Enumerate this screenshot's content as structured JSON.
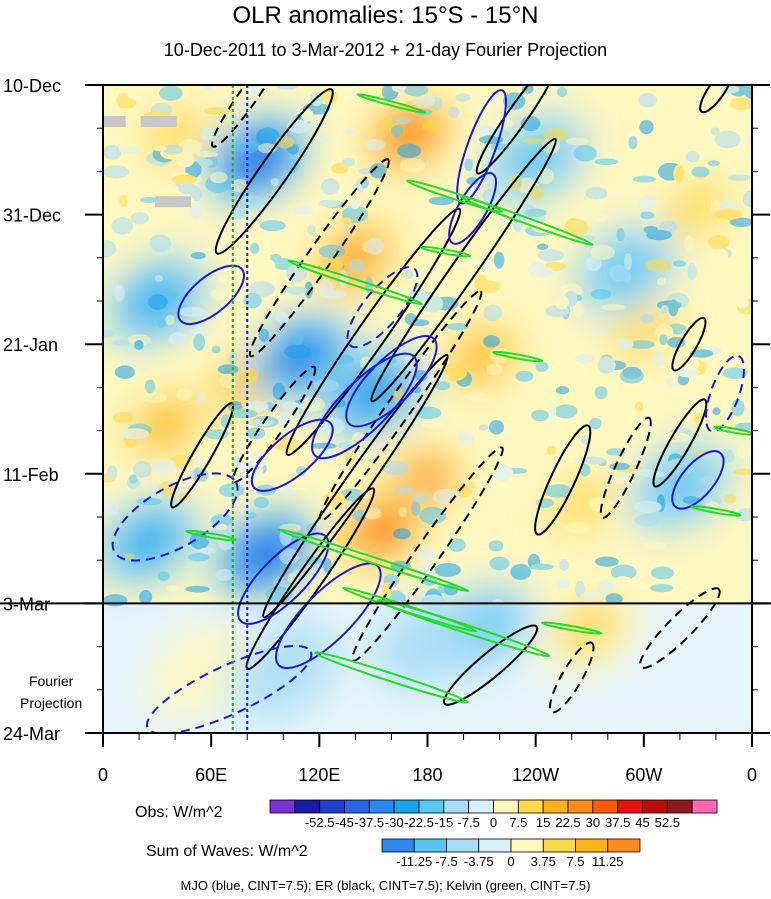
{
  "title": "OLR anomalies: 15°S - 15°N",
  "subtitle": "10-Dec-2011 to 3-Mar-2012 + 21-day Fourier Projection",
  "projection_label": [
    "Fourier",
    "Projection"
  ],
  "footer": "MJO (blue, CINT=7.5); ER (black, CINT=7.5); Kelvin (green, CINT=7.5)",
  "colorbars": {
    "obs": {
      "label": "Obs: W/m^2",
      "ticks": [
        "-52.5",
        "-45",
        "-37.5",
        "-30",
        "-22.5",
        "-15",
        "-7.5",
        "0",
        "7.5",
        "15",
        "22.5",
        "30",
        "37.5",
        "45",
        "52.5"
      ],
      "colors": [
        "#7b2fd6",
        "#1a1aa8",
        "#1f3fcf",
        "#2b62e6",
        "#2f86ee",
        "#1aa3ec",
        "#56c6f3",
        "#a9ddf6",
        "#d8f1fb",
        "#fff8c0",
        "#ffd94a",
        "#ffb31a",
        "#ff8c1a",
        "#ff5a10",
        "#e51010",
        "#c00a0a",
        "#8c1a1a",
        "#ff69b4"
      ]
    },
    "waves": {
      "label": "Sum of Waves: W/m^2",
      "ticks": [
        "-11.25",
        "-7.5",
        "-3.75",
        "0",
        "3.75",
        "7.5",
        "11.25"
      ],
      "colors": [
        "#2f86ee",
        "#56c6f3",
        "#a9ddf6",
        "#d8f1fb",
        "#fff8c0",
        "#ffd94a",
        "#ffb31a",
        "#ff8c1a"
      ]
    }
  },
  "chart_data": {
    "type": "heatmap",
    "title": "OLR anomalies: 15°S - 15°N",
    "subtitle": "10-Dec-2011 to 3-Mar-2012 + 21-day Fourier Projection",
    "x_ticks": [
      {
        "lon": 0,
        "label": "0"
      },
      {
        "lon": 60,
        "label": "60E"
      },
      {
        "lon": 120,
        "label": "120E"
      },
      {
        "lon": 180,
        "label": "180"
      },
      {
        "lon": 240,
        "label": "120W"
      },
      {
        "lon": 300,
        "label": "60W"
      },
      {
        "lon": 360,
        "label": "0"
      }
    ],
    "xlim": [
      0,
      360
    ],
    "y_ticks": [
      {
        "day": 0,
        "label": "10-Dec"
      },
      {
        "day": 21,
        "label": "31-Dec"
      },
      {
        "day": 42,
        "label": "21-Jan"
      },
      {
        "day": 63,
        "label": "11-Feb"
      },
      {
        "day": 84,
        "label": "3-Mar"
      },
      {
        "day": 105,
        "label": "24-Mar"
      }
    ],
    "ylim": [
      0,
      105
    ],
    "observation_end_day": 84,
    "reference_longitudes": [
      72,
      80
    ],
    "contour_intervals": {
      "MJO": 7.5,
      "ER": 7.5,
      "Kelvin": 7.5
    },
    "contour_colors": {
      "MJO": "#1a1ad6",
      "ER": "#000000",
      "Kelvin": "#22dd22"
    },
    "anomaly_regions": [
      {
        "lon": 140,
        "day": 28,
        "value": 30
      },
      {
        "lon": 170,
        "day": 8,
        "value": 40
      },
      {
        "lon": 175,
        "day": 65,
        "value": 40
      },
      {
        "lon": 155,
        "day": 72,
        "value": 35
      },
      {
        "lon": 80,
        "day": 48,
        "value": 22
      },
      {
        "lon": 35,
        "day": 55,
        "value": 25
      },
      {
        "lon": 40,
        "day": 8,
        "value": 15
      },
      {
        "lon": 210,
        "day": 44,
        "value": 22
      },
      {
        "lon": 300,
        "day": 40,
        "value": 15
      },
      {
        "lon": 265,
        "day": 68,
        "value": 12
      },
      {
        "lon": 330,
        "day": 20,
        "value": 12
      },
      {
        "lon": 270,
        "day": 88,
        "value": 12
      },
      {
        "lon": 55,
        "day": 95,
        "value": 8
      },
      {
        "lon": 85,
        "day": 12,
        "value": -45
      },
      {
        "lon": 110,
        "day": 44,
        "value": -40
      },
      {
        "lon": 90,
        "day": 76,
        "value": -45
      },
      {
        "lon": 150,
        "day": 50,
        "value": -30
      },
      {
        "lon": 30,
        "day": 35,
        "value": -22
      },
      {
        "lon": 240,
        "day": 12,
        "value": -15
      },
      {
        "lon": 290,
        "day": 30,
        "value": -15
      },
      {
        "lon": 320,
        "day": 65,
        "value": -15
      },
      {
        "lon": 210,
        "day": 88,
        "value": -15
      },
      {
        "lon": 180,
        "day": 90,
        "value": -10
      },
      {
        "lon": 100,
        "day": 95,
        "value": -10
      },
      {
        "lon": 25,
        "day": 74,
        "value": -22
      }
    ],
    "grid": false
  }
}
